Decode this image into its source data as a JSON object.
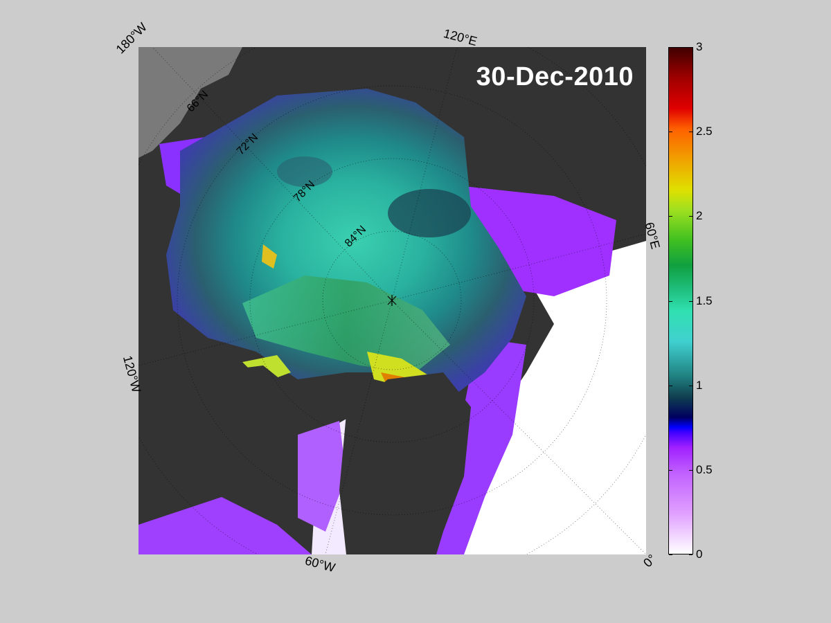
{
  "map": {
    "date": "30-Dec-2010",
    "edge_labels": {
      "top_left": "180°W",
      "top": "120°E",
      "right": "60°E",
      "left": "120°W",
      "bottom": "60°W",
      "bottom_right": "0°"
    },
    "lat_labels": [
      "66°N",
      "72°N",
      "78°N",
      "84°N"
    ]
  },
  "colorbar": {
    "min": 0,
    "max": 3,
    "ticks": [
      "0",
      "0.5",
      "1",
      "1.5",
      "2",
      "2.5",
      "3"
    ]
  }
}
